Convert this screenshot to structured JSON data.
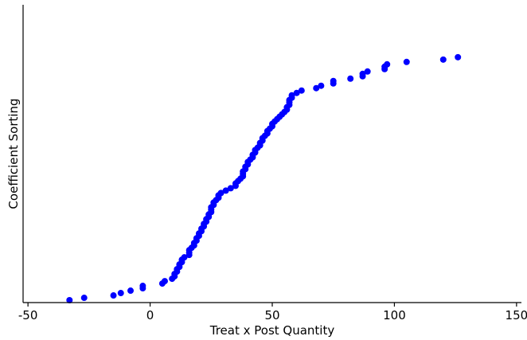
{
  "chart_data": {
    "type": "scatter",
    "title": "",
    "xlabel": "Treat x Post Quantity",
    "ylabel": "Coefficient Sorting",
    "xlim": [
      -52,
      152
    ],
    "ylim": [
      0,
      125
    ],
    "xticks": [
      -50,
      0,
      50,
      100,
      150
    ],
    "xtick_labels": [
      "-50",
      "0",
      "50",
      "100",
      "150"
    ],
    "yticks": [],
    "grid": false,
    "legend": "none",
    "marker_color": "#0000ff",
    "series": [
      {
        "x": [
          -33,
          -27,
          -15,
          -12,
          -8,
          -3,
          -3,
          5,
          6,
          9,
          10,
          10,
          11,
          11,
          12,
          12,
          13,
          13,
          14,
          16,
          16,
          16,
          17,
          18,
          18,
          19,
          19,
          20,
          20,
          21,
          21,
          22,
          22,
          23,
          23,
          24,
          24,
          25,
          25,
          25,
          26,
          26,
          27,
          28,
          28,
          29,
          31,
          33,
          35,
          35,
          36,
          37,
          38,
          38,
          38,
          39,
          39,
          40,
          40,
          41,
          42,
          42,
          43,
          43,
          44,
          45,
          45,
          46,
          46,
          47,
          48,
          48,
          49,
          50,
          50,
          51,
          52,
          53,
          54,
          55,
          56,
          56,
          57,
          57,
          57,
          58,
          58,
          60,
          62,
          68,
          70,
          75,
          75,
          82,
          87,
          87,
          89,
          96,
          96,
          97,
          105,
          120,
          126
        ],
        "y": [
          1,
          2,
          3,
          4,
          5,
          6,
          7,
          8,
          9,
          10,
          11,
          12,
          13,
          14,
          15,
          16,
          17,
          18,
          19,
          20,
          21,
          22,
          23,
          24,
          25,
          26,
          27,
          28,
          29,
          30,
          31,
          32,
          33,
          34,
          35,
          36,
          37,
          38,
          39,
          40,
          41,
          42,
          43,
          44,
          45,
          46,
          47,
          48,
          49,
          50,
          51,
          52,
          53,
          54,
          55,
          56,
          57,
          58,
          59,
          60,
          61,
          62,
          63,
          64,
          65,
          66,
          67,
          68,
          69,
          70,
          71,
          72,
          73,
          74,
          75,
          76,
          77,
          78,
          79,
          80,
          81,
          82,
          83,
          84,
          85,
          86,
          87,
          88,
          89,
          90,
          91,
          92,
          93,
          94,
          95,
          96,
          97,
          98,
          99,
          100,
          101,
          102,
          103
        ]
      }
    ]
  }
}
